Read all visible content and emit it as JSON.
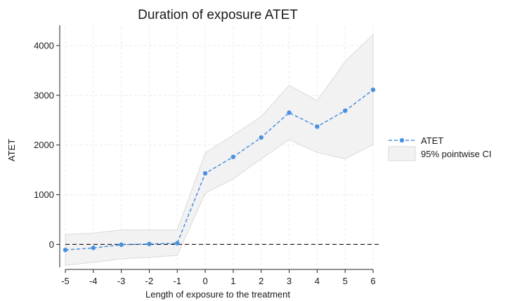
{
  "chart_data": {
    "type": "line",
    "title": "Duration of exposure ATET",
    "xlabel": "Length of exposure to the treatment",
    "ylabel": "ATET",
    "x": [
      -5,
      -4,
      -3,
      -2,
      -1,
      0,
      1,
      2,
      3,
      4,
      5,
      6
    ],
    "x_ticks": [
      "-5",
      "-4",
      "-3",
      "-2",
      "-1",
      "0",
      "1",
      "2",
      "3",
      "4",
      "5",
      "6"
    ],
    "y_ticks": [
      "0",
      "1000",
      "2000",
      "3000",
      "4000"
    ],
    "y_tick_values": [
      0,
      1000,
      2000,
      3000,
      4000
    ],
    "xlim": [
      -5,
      6
    ],
    "ylim": [
      -460,
      4380
    ],
    "grid": true,
    "reference_line_y": 0,
    "legend_position": "right",
    "series": [
      {
        "name": "ATET",
        "values": [
          -110,
          -70,
          -5,
          10,
          25,
          1430,
          1760,
          2150,
          2650,
          2370,
          2690,
          3110
        ],
        "color": "#4a90e2"
      }
    ],
    "ci": {
      "name": "95% pointwise CI",
      "lower": [
        -420,
        -360,
        -290,
        -260,
        -220,
        1030,
        1320,
        1720,
        2110,
        1850,
        1720,
        2010
      ],
      "upper": [
        200,
        230,
        290,
        290,
        290,
        1840,
        2200,
        2570,
        3200,
        2890,
        3680,
        4220
      ],
      "color": "#f1f1f1"
    }
  }
}
